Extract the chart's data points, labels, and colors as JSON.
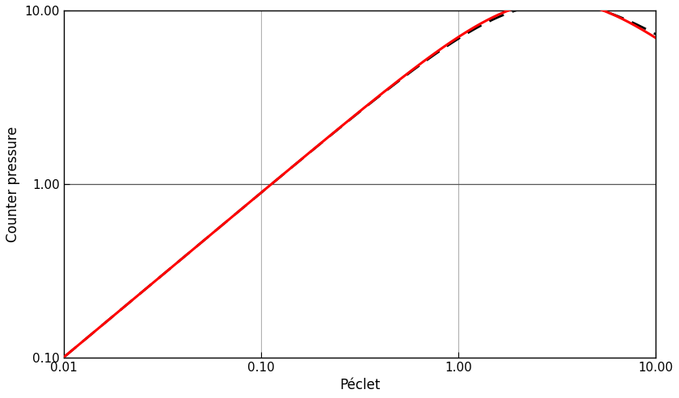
{
  "xlabel": "Péclet",
  "ylabel": "Counter pressure",
  "xlim": [
    0.01,
    10.0
  ],
  "ylim": [
    0.1,
    10.0
  ],
  "grid_verticals": [
    0.1,
    1.0
  ],
  "grid_horizontals": [
    1.0
  ],
  "red_line_color": "#ff0000",
  "black_line_color": "#000000",
  "red_linewidth": 2.2,
  "black_linewidth": 2.0,
  "background_color": "#ffffff",
  "figsize": [
    8.4,
    4.93
  ],
  "dpi": 100,
  "x_ticks": [
    0.01,
    0.1,
    1.0,
    10.0
  ],
  "x_labels": [
    "0.01",
    "0.10",
    "1.00",
    "10.00"
  ],
  "y_ticks": [
    0.1,
    1.0,
    10.0
  ],
  "y_labels": [
    "0.10",
    "1.00",
    "10.00"
  ],
  "red_params": {
    "alpha": 0.95,
    "beta": 0.13,
    "gamma": 1.85
  },
  "black_params": {
    "alpha": 0.95,
    "beta": 0.155,
    "gamma": 1.75
  }
}
